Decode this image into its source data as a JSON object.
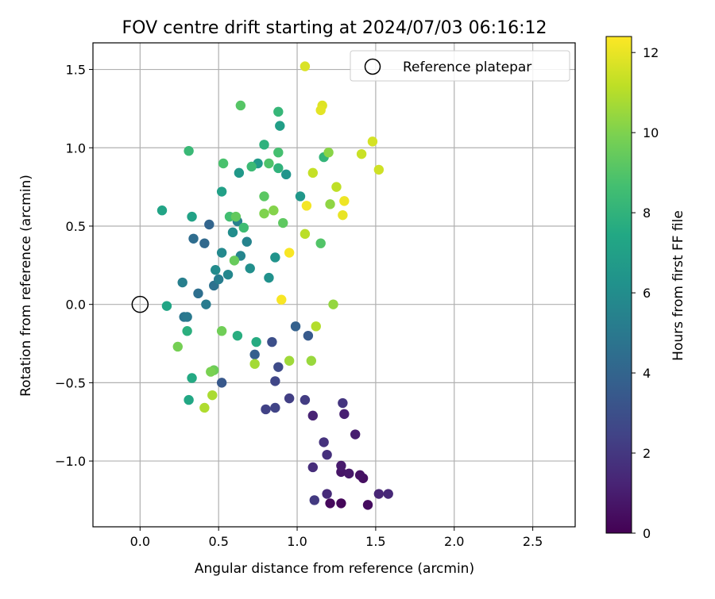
{
  "chart_data": {
    "type": "scatter",
    "title": "FOV centre drift starting at 2024/07/03 06:16:12",
    "xlabel": "Angular distance from reference (arcmin)",
    "ylabel": "Rotation from reference (arcmin)",
    "xlim": [
      -0.3,
      2.77
    ],
    "ylim": [
      -1.42,
      1.67
    ],
    "xticks": [
      0.0,
      0.5,
      1.0,
      1.5,
      2.0,
      2.5
    ],
    "xtick_labels": [
      "0.0",
      "0.5",
      "1.0",
      "1.5",
      "2.0",
      "2.5"
    ],
    "yticks": [
      -1.0,
      -0.5,
      0.0,
      0.5,
      1.0,
      1.5
    ],
    "ytick_labels": [
      "−1.0",
      "−0.5",
      "0.0",
      "0.5",
      "1.0",
      "1.5"
    ],
    "grid": true,
    "colormap": "viridis",
    "colorbar": {
      "label": "Hours from first FF file",
      "range": [
        0,
        12.4
      ],
      "ticks": [
        0,
        2,
        4,
        6,
        8,
        10,
        12
      ],
      "tick_labels": [
        "0",
        "2",
        "4",
        "6",
        "8",
        "10",
        "12"
      ]
    },
    "legend": {
      "placement": "top-right",
      "entries": [
        "Reference platepar"
      ]
    },
    "reference": {
      "x": 0.0,
      "y": 0.0
    },
    "points": [
      {
        "x": 1.28,
        "y": -1.27,
        "t": 0.2
      },
      {
        "x": 1.21,
        "y": -1.27,
        "t": 0.3
      },
      {
        "x": 1.45,
        "y": -1.28,
        "t": 0.4
      },
      {
        "x": 1.42,
        "y": -1.11,
        "t": 0.5
      },
      {
        "x": 1.4,
        "y": -1.09,
        "t": 0.6
      },
      {
        "x": 1.28,
        "y": -1.07,
        "t": 0.7
      },
      {
        "x": 1.33,
        "y": -1.08,
        "t": 0.8
      },
      {
        "x": 1.28,
        "y": -1.03,
        "t": 0.9
      },
      {
        "x": 1.37,
        "y": -0.83,
        "t": 1.0
      },
      {
        "x": 1.3,
        "y": -0.7,
        "t": 1.1
      },
      {
        "x": 1.1,
        "y": -0.71,
        "t": 1.2
      },
      {
        "x": 1.52,
        "y": -1.21,
        "t": 1.3
      },
      {
        "x": 1.58,
        "y": -1.21,
        "t": 1.4
      },
      {
        "x": 1.19,
        "y": -1.21,
        "t": 1.5
      },
      {
        "x": 1.1,
        "y": -1.04,
        "t": 1.6
      },
      {
        "x": 1.19,
        "y": -0.96,
        "t": 1.7
      },
      {
        "x": 1.17,
        "y": -0.88,
        "t": 1.8
      },
      {
        "x": 1.29,
        "y": -0.63,
        "t": 1.9
      },
      {
        "x": 1.11,
        "y": -1.25,
        "t": 2.1
      },
      {
        "x": 1.05,
        "y": -0.61,
        "t": 2.2
      },
      {
        "x": 0.95,
        "y": -0.6,
        "t": 2.3
      },
      {
        "x": 0.8,
        "y": -0.67,
        "t": 2.4
      },
      {
        "x": 0.86,
        "y": -0.66,
        "t": 2.5
      },
      {
        "x": 0.86,
        "y": -0.49,
        "t": 2.6
      },
      {
        "x": 0.88,
        "y": -0.4,
        "t": 2.8
      },
      {
        "x": 0.84,
        "y": -0.24,
        "t": 3.0
      },
      {
        "x": 0.52,
        "y": -0.5,
        "t": 3.4
      },
      {
        "x": 1.07,
        "y": -0.2,
        "t": 3.5
      },
      {
        "x": 0.73,
        "y": -0.32,
        "t": 3.7
      },
      {
        "x": 0.99,
        "y": -0.14,
        "t": 3.8
      },
      {
        "x": 0.44,
        "y": 0.51,
        "t": 4.0
      },
      {
        "x": 0.41,
        "y": 0.39,
        "t": 4.2
      },
      {
        "x": 0.34,
        "y": 0.42,
        "t": 4.4
      },
      {
        "x": 0.37,
        "y": 0.07,
        "t": 4.5
      },
      {
        "x": 0.47,
        "y": 0.12,
        "t": 4.6
      },
      {
        "x": 0.28,
        "y": -0.08,
        "t": 4.8
      },
      {
        "x": 0.3,
        "y": -0.08,
        "t": 5.0
      },
      {
        "x": 0.42,
        "y": 0.0,
        "t": 5.1
      },
      {
        "x": 0.5,
        "y": 0.16,
        "t": 5.2
      },
      {
        "x": 0.27,
        "y": 0.14,
        "t": 5.3
      },
      {
        "x": 0.62,
        "y": 0.53,
        "t": 5.4
      },
      {
        "x": 0.68,
        "y": 0.4,
        "t": 5.5
      },
      {
        "x": 0.64,
        "y": 0.31,
        "t": 5.6
      },
      {
        "x": 0.56,
        "y": 0.19,
        "t": 5.7
      },
      {
        "x": 0.52,
        "y": 0.33,
        "t": 5.8
      },
      {
        "x": 0.48,
        "y": 0.22,
        "t": 5.9
      },
      {
        "x": 0.59,
        "y": 0.46,
        "t": 6.0
      },
      {
        "x": 0.7,
        "y": 0.23,
        "t": 6.1
      },
      {
        "x": 0.82,
        "y": 0.17,
        "t": 6.2
      },
      {
        "x": 0.86,
        "y": 0.3,
        "t": 6.3
      },
      {
        "x": 0.93,
        "y": 0.83,
        "t": 6.4
      },
      {
        "x": 1.02,
        "y": 0.69,
        "t": 6.5
      },
      {
        "x": 0.63,
        "y": 0.84,
        "t": 6.6
      },
      {
        "x": 0.75,
        "y": 0.9,
        "t": 6.7
      },
      {
        "x": 0.89,
        "y": 1.14,
        "t": 6.9
      },
      {
        "x": 0.52,
        "y": 0.72,
        "t": 7.0
      },
      {
        "x": 0.33,
        "y": 0.56,
        "t": 7.1
      },
      {
        "x": 0.14,
        "y": 0.6,
        "t": 7.2
      },
      {
        "x": 0.17,
        "y": -0.01,
        "t": 7.3
      },
      {
        "x": 0.31,
        "y": -0.61,
        "t": 7.4
      },
      {
        "x": 0.33,
        "y": -0.47,
        "t": 7.5
      },
      {
        "x": 0.74,
        "y": -0.24,
        "t": 7.6
      },
      {
        "x": 0.62,
        "y": -0.2,
        "t": 7.7
      },
      {
        "x": 0.3,
        "y": -0.17,
        "t": 7.8
      },
      {
        "x": 0.79,
        "y": 1.02,
        "t": 7.9
      },
      {
        "x": 0.88,
        "y": 0.87,
        "t": 8.0
      },
      {
        "x": 1.17,
        "y": 0.94,
        "t": 8.1
      },
      {
        "x": 0.88,
        "y": 1.23,
        "t": 8.2
      },
      {
        "x": 0.31,
        "y": 0.98,
        "t": 8.3
      },
      {
        "x": 0.71,
        "y": 0.88,
        "t": 8.4
      },
      {
        "x": 0.66,
        "y": 0.49,
        "t": 8.5
      },
      {
        "x": 0.57,
        "y": 0.56,
        "t": 8.6
      },
      {
        "x": 0.88,
        "y": 0.97,
        "t": 8.7
      },
      {
        "x": 0.53,
        "y": 0.9,
        "t": 8.8
      },
      {
        "x": 0.82,
        "y": 0.9,
        "t": 8.9
      },
      {
        "x": 1.15,
        "y": 0.39,
        "t": 9.0
      },
      {
        "x": 0.64,
        "y": 1.27,
        "t": 9.1
      },
      {
        "x": 0.79,
        "y": 0.69,
        "t": 9.2
      },
      {
        "x": 0.91,
        "y": 0.52,
        "t": 9.3
      },
      {
        "x": 0.61,
        "y": 0.56,
        "t": 9.4
      },
      {
        "x": 0.6,
        "y": 0.28,
        "t": 9.5
      },
      {
        "x": 0.47,
        "y": -0.42,
        "t": 9.6
      },
      {
        "x": 0.52,
        "y": -0.17,
        "t": 9.7
      },
      {
        "x": 0.24,
        "y": -0.27,
        "t": 9.8
      },
      {
        "x": 0.45,
        "y": -0.43,
        "t": 9.9
      },
      {
        "x": 0.79,
        "y": 0.58,
        "t": 10.0
      },
      {
        "x": 0.85,
        "y": 0.6,
        "t": 10.1
      },
      {
        "x": 1.2,
        "y": 0.97,
        "t": 10.2
      },
      {
        "x": 1.21,
        "y": 0.64,
        "t": 10.3
      },
      {
        "x": 1.23,
        "y": 0.0,
        "t": 10.4
      },
      {
        "x": 1.09,
        "y": -0.36,
        "t": 10.5
      },
      {
        "x": 0.95,
        "y": -0.36,
        "t": 10.6
      },
      {
        "x": 0.73,
        "y": -0.38,
        "t": 10.7
      },
      {
        "x": 0.46,
        "y": -0.58,
        "t": 10.8
      },
      {
        "x": 0.41,
        "y": -0.66,
        "t": 10.9
      },
      {
        "x": 1.12,
        "y": -0.14,
        "t": 11.0
      },
      {
        "x": 1.05,
        "y": 0.45,
        "t": 11.1
      },
      {
        "x": 1.25,
        "y": 0.75,
        "t": 11.2
      },
      {
        "x": 1.1,
        "y": 0.84,
        "t": 11.3
      },
      {
        "x": 1.41,
        "y": 0.96,
        "t": 11.4
      },
      {
        "x": 1.52,
        "y": 0.86,
        "t": 11.5
      },
      {
        "x": 1.48,
        "y": 1.04,
        "t": 11.6
      },
      {
        "x": 1.05,
        "y": 1.52,
        "t": 11.7
      },
      {
        "x": 1.16,
        "y": 1.27,
        "t": 11.8
      },
      {
        "x": 1.15,
        "y": 1.24,
        "t": 11.9
      },
      {
        "x": 1.29,
        "y": 0.57,
        "t": 12.0
      },
      {
        "x": 1.3,
        "y": 0.66,
        "t": 12.1
      },
      {
        "x": 1.06,
        "y": 0.63,
        "t": 12.2
      },
      {
        "x": 0.95,
        "y": 0.33,
        "t": 12.3
      },
      {
        "x": 0.9,
        "y": 0.03,
        "t": 12.3
      }
    ]
  }
}
